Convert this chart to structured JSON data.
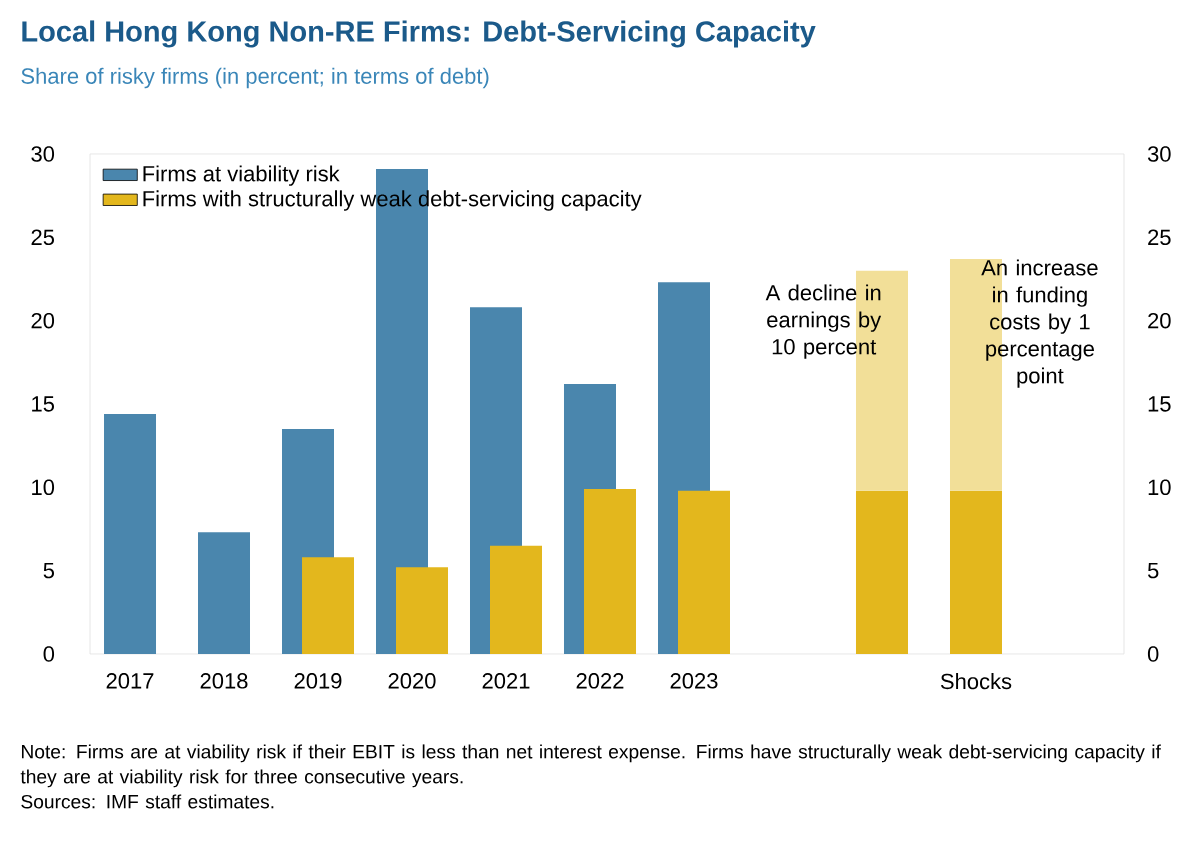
{
  "chart_data": {
    "type": "bar",
    "title": "Local Hong Kong Non-RE Firms: Debt-Servicing Capacity",
    "subtitle": "Share of risky firms (in percent; in terms of debt)",
    "categories": [
      "2017",
      "2018",
      "2019",
      "2020",
      "2021",
      "2022",
      "2023",
      null,
      null,
      "Shocks"
    ],
    "series": [
      {
        "name": "Firms at viability risk",
        "color": "#4a86ad",
        "values": [
          14.4,
          7.3,
          13.5,
          29.1,
          20.8,
          16.2,
          22.3,
          null,
          null,
          null
        ]
      },
      {
        "name": "Firms with structurally weak debt-servicing capacity",
        "color": "#e3b71d",
        "values": [
          null,
          null,
          5.8,
          5.2,
          6.5,
          9.9,
          9.8,
          null,
          9.8,
          9.8
        ]
      },
      {
        "color": "#f2df98",
        "base": [
          null,
          null,
          null,
          null,
          null,
          null,
          null,
          null,
          9.8,
          9.8
        ],
        "values": [
          null,
          null,
          null,
          null,
          null,
          null,
          null,
          null,
          13.2,
          13.9
        ]
      }
    ],
    "ylim": [
      0,
      30
    ],
    "yticks": [
      0,
      5,
      10,
      15,
      20,
      25,
      30
    ],
    "y2lim": [
      0,
      30
    ],
    "y2ticks": [
      0,
      5,
      10,
      15,
      20,
      25,
      30
    ],
    "grid": false,
    "legend": "top left",
    "annotations": [
      "A decline in earnings by 10 percent",
      "An increase in funding costs by 1 percentage point",
      "Note: Firms are at viability risk if their EBIT is less than net interest expense. Firms have structurally weak debt-servicing capacity if they are at viability risk for three consecutive years.",
      "Sources: IMF staff estimates."
    ]
  }
}
